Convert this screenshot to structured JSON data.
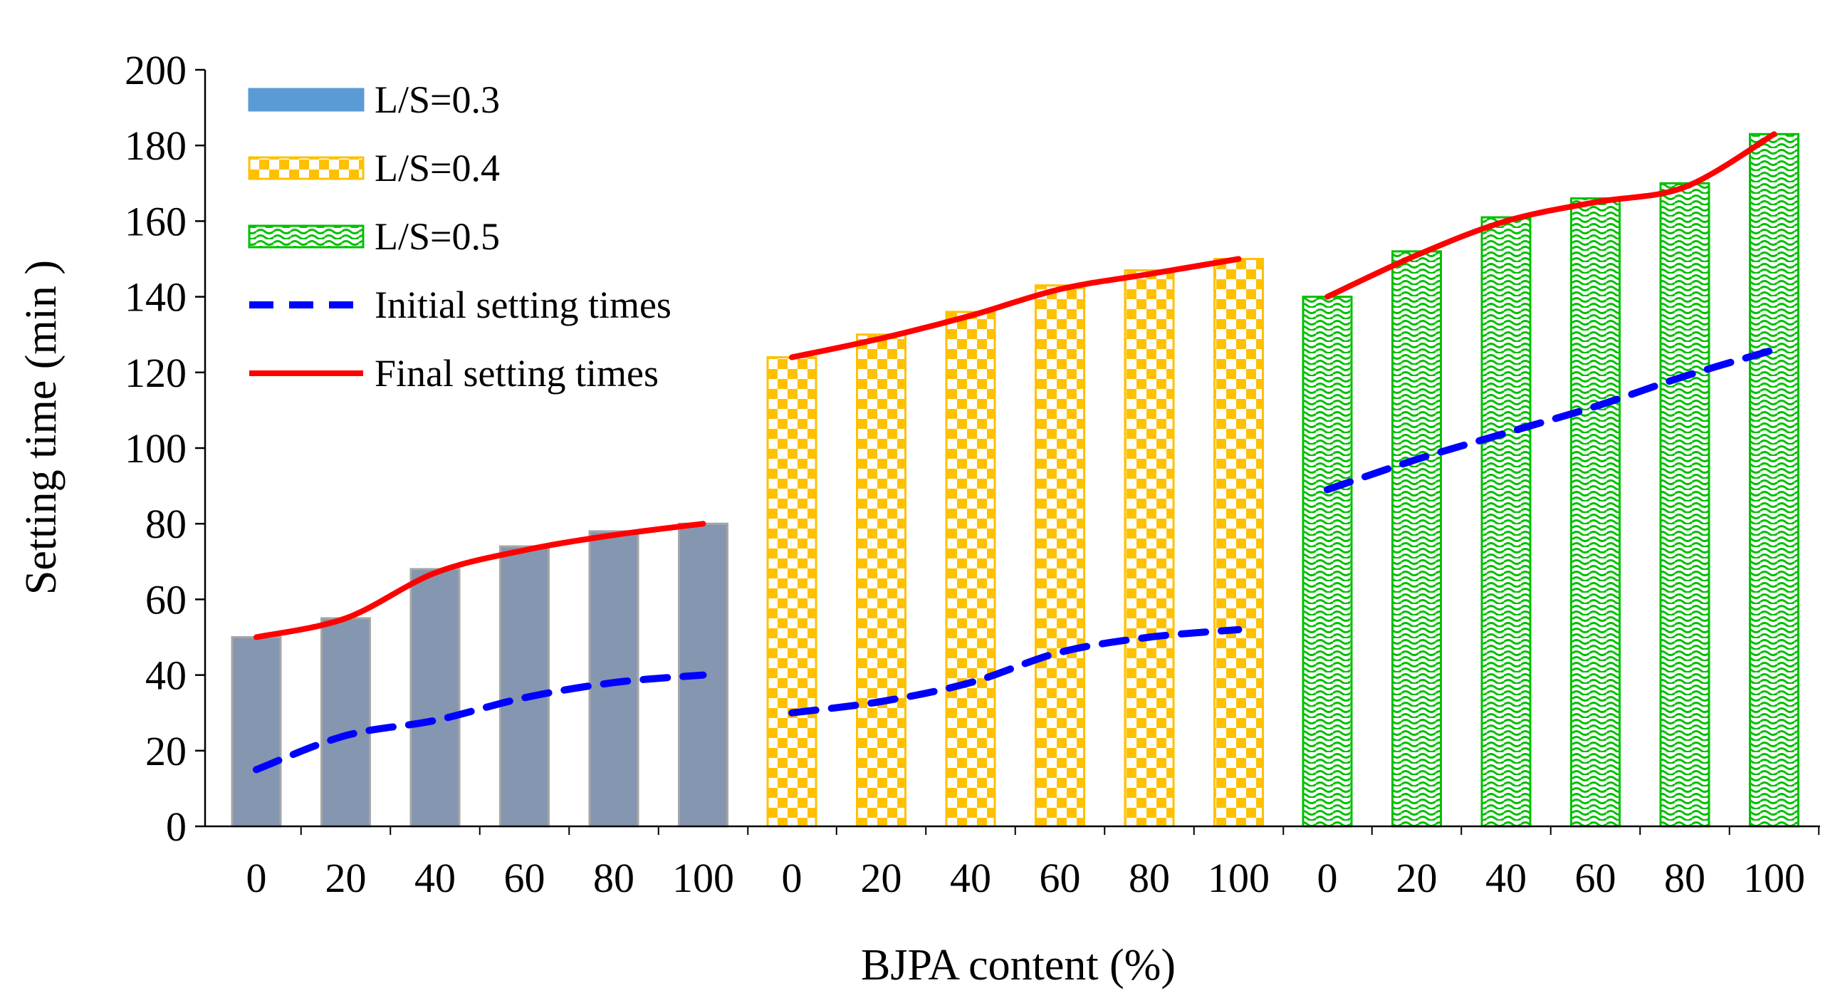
{
  "chart_data": {
    "type": "bar",
    "title": "",
    "xlabel": "BJPA content (%)",
    "ylabel": "Setting time (min )",
    "ylim": [
      0,
      200
    ],
    "yticks": [
      "0",
      "20",
      "40",
      "60",
      "80",
      "100",
      "120",
      "140",
      "160",
      "180",
      "200"
    ],
    "categories": [
      "0",
      "20",
      "40",
      "60",
      "80",
      "100"
    ],
    "groups": [
      {
        "name": "L/S=0.3",
        "bar_values": [
          50,
          55,
          68,
          74,
          78,
          80
        ],
        "initial": [
          15,
          24,
          28,
          34,
          38,
          40
        ],
        "final": [
          50,
          55,
          67,
          73,
          77,
          80
        ]
      },
      {
        "name": "L/S=0.4",
        "bar_values": [
          124,
          130,
          136,
          143,
          147,
          150
        ],
        "initial": [
          30,
          33,
          38,
          46,
          50,
          52
        ],
        "final": [
          124,
          129,
          135,
          142,
          146,
          150
        ]
      },
      {
        "name": "L/S=0.5",
        "bar_values": [
          140,
          152,
          161,
          166,
          170,
          183
        ],
        "initial": [
          89,
          97,
          104,
          111,
          119,
          126
        ],
        "final": [
          140,
          151,
          160,
          165,
          169,
          183
        ]
      }
    ],
    "legend": {
      "position": "top-left",
      "entries": [
        "L/S=0.3",
        "L/S=0.4",
        "L/S=0.5",
        "Initial setting times",
        "Final setting times"
      ]
    },
    "colors": {
      "bar_03": "#8496b0",
      "bar_03_legend": "#5b9bd5",
      "bar_04": "#ffc000",
      "bar_05": "#00c000",
      "initial_line": "#0000ff",
      "final_line": "#ff0000"
    }
  }
}
